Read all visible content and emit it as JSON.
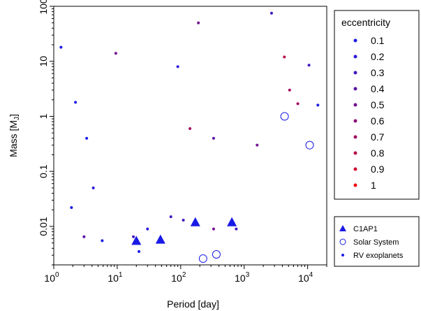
{
  "chart_data": {
    "type": "scatter",
    "xlabel": "Period [day]",
    "ylabel": "Mass [M",
    "ylabel_sub": "J",
    "ylabel_end": "]",
    "x_scale": "log",
    "y_scale": "log",
    "xlim": [
      1,
      20000
    ],
    "ylim": [
      0.002,
      100
    ],
    "x_ticks": [
      {
        "value": 1,
        "base": "10",
        "exp": "0"
      },
      {
        "value": 10,
        "base": "10",
        "exp": "1"
      },
      {
        "value": 100,
        "base": "10",
        "exp": "2"
      },
      {
        "value": 1000,
        "base": "10",
        "exp": "3"
      },
      {
        "value": 10000,
        "base": "10",
        "exp": "4"
      }
    ],
    "y_ticks": [
      {
        "value": 0.01,
        "label": "0.01"
      },
      {
        "value": 0.1,
        "label": "0.1"
      },
      {
        "value": 1,
        "label": "1"
      },
      {
        "value": 10,
        "label": "10"
      },
      {
        "value": 100,
        "label": "100"
      }
    ],
    "grid": false,
    "colorbar_legend": {
      "title": "eccentricity",
      "placement": "upper-right outside",
      "entries": [
        {
          "label": "0.1",
          "color": "#1a1ae6"
        },
        {
          "label": "0.2",
          "color": "#2d19d6"
        },
        {
          "label": "0.3",
          "color": "#4217c0"
        },
        {
          "label": "0.4",
          "color": "#5a14a8"
        },
        {
          "label": "0.5",
          "color": "#721290"
        },
        {
          "label": "0.6",
          "color": "#8a0f78"
        },
        {
          "label": "0.7",
          "color": "#a20c60"
        },
        {
          "label": "0.8",
          "color": "#ba0a48"
        },
        {
          "label": "0.9",
          "color": "#d20830"
        },
        {
          "label": "1",
          "color": "#ee0510"
        }
      ]
    },
    "series_legend": {
      "placement": "lower-right outside",
      "entries": [
        {
          "label": "C1AP1",
          "marker": "filled-triangle",
          "color": "#1a1ae6"
        },
        {
          "label": "Solar System",
          "marker": "open-circle",
          "color": "#1a1ae6"
        },
        {
          "label": "RV exoplanets",
          "marker": "small-dot",
          "color": "#1a1ae6"
        }
      ]
    },
    "series": [
      {
        "name": "C1AP1",
        "marker": "filled-triangle",
        "color": "#1a1ae6",
        "points": [
          {
            "x": 20,
            "y": 0.0055
          },
          {
            "x": 48,
            "y": 0.0058
          },
          {
            "x": 170,
            "y": 0.012
          },
          {
            "x": 640,
            "y": 0.012
          }
        ]
      },
      {
        "name": "Solar System",
        "marker": "open-circle",
        "color": "#1a1ae6",
        "points": [
          {
            "x": 225,
            "y": 0.0026
          },
          {
            "x": 365,
            "y": 0.0031
          },
          {
            "x": 4333,
            "y": 1.0
          },
          {
            "x": 10759,
            "y": 0.3
          }
        ]
      },
      {
        "name": "RV exoplanets",
        "marker": "small-dot",
        "color_by": "eccentricity",
        "points": [
          {
            "x": 1.3,
            "y": 18,
            "e": 0.0
          },
          {
            "x": 1.9,
            "y": 0.022,
            "e": 0.1
          },
          {
            "x": 2.2,
            "y": 1.8,
            "e": 0.1
          },
          {
            "x": 3.0,
            "y": 0.0065,
            "e": 0.4
          },
          {
            "x": 3.3,
            "y": 0.4,
            "e": 0.1
          },
          {
            "x": 4.2,
            "y": 0.05,
            "e": 0.2
          },
          {
            "x": 5.8,
            "y": 0.0055,
            "e": 0.1
          },
          {
            "x": 9.5,
            "y": 14,
            "e": 0.5
          },
          {
            "x": 18,
            "y": 0.0065,
            "e": 0.3
          },
          {
            "x": 22,
            "y": 0.0035,
            "e": 0.1
          },
          {
            "x": 30,
            "y": 0.009,
            "e": 0.2
          },
          {
            "x": 70,
            "y": 0.015,
            "e": 0.3
          },
          {
            "x": 90,
            "y": 8,
            "e": 0.2
          },
          {
            "x": 110,
            "y": 0.013,
            "e": 0.3
          },
          {
            "x": 140,
            "y": 0.6,
            "e": 0.7
          },
          {
            "x": 190,
            "y": 50,
            "e": 0.5
          },
          {
            "x": 330,
            "y": 0.009,
            "e": 0.5
          },
          {
            "x": 330,
            "y": 0.4,
            "e": 0.4
          },
          {
            "x": 750,
            "y": 0.009,
            "e": 0.3
          },
          {
            "x": 1600,
            "y": 0.3,
            "e": 0.5
          },
          {
            "x": 2700,
            "y": 75,
            "e": 0.3
          },
          {
            "x": 4300,
            "y": 12,
            "e": 0.8
          },
          {
            "x": 5200,
            "y": 3,
            "e": 0.7
          },
          {
            "x": 7000,
            "y": 1.7,
            "e": 0.7
          },
          {
            "x": 10500,
            "y": 8.5,
            "e": 0.3
          },
          {
            "x": 14500,
            "y": 1.6,
            "e": 0.1
          }
        ]
      }
    ]
  }
}
